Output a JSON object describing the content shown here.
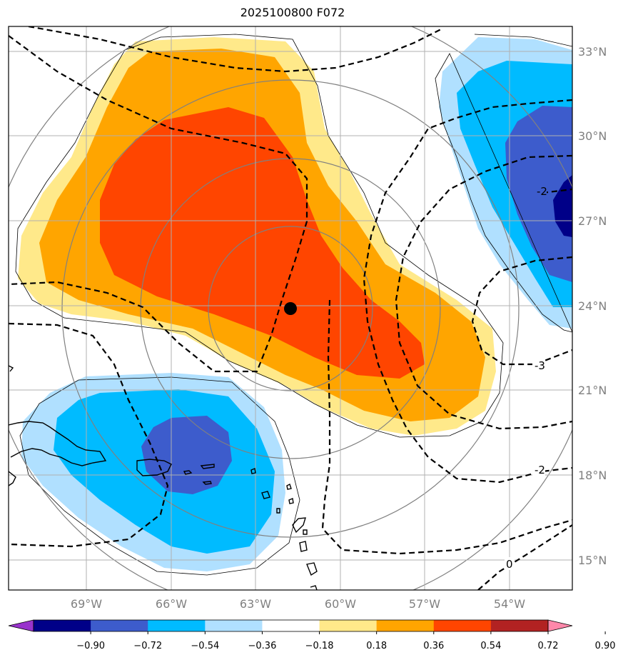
{
  "title": "2025100800 F072",
  "lat_labels": [
    "33°N",
    "30°N",
    "27°N",
    "24°N",
    "21°N",
    "18°N",
    "15°N"
  ],
  "lon_labels": [
    "69°W",
    "66°W",
    "63°W",
    "60°W",
    "57°W",
    "54°W"
  ],
  "colorbar": {
    "ticks": [
      "−0.90",
      "−0.72",
      "−0.54",
      "−0.36",
      "−0.18",
      "0.18",
      "0.36",
      "0.54",
      "0.72",
      "0.90"
    ],
    "colors": [
      "#9933cc",
      "#000088",
      "#3d5ccc",
      "#00bbff",
      "#b0e0ff",
      "#ffffff",
      "#ffe98a",
      "#ffa500",
      "#ff4500",
      "#b22222",
      "#ff88aa"
    ]
  },
  "contour_labels": [
    "-2",
    "-3",
    "-2",
    "0"
  ],
  "storm_center": {
    "lat": 23.9,
    "lon": -61.8
  },
  "colors": {
    "warm1": "#ffe98a",
    "warm2": "#ffa500",
    "warm3": "#ff4500",
    "cool1": "#b0e0ff",
    "cool2": "#00bbff",
    "cool3": "#3d5ccc",
    "cool4": "#000088",
    "grid": "#b0b0b0",
    "ring": "#808080"
  }
}
